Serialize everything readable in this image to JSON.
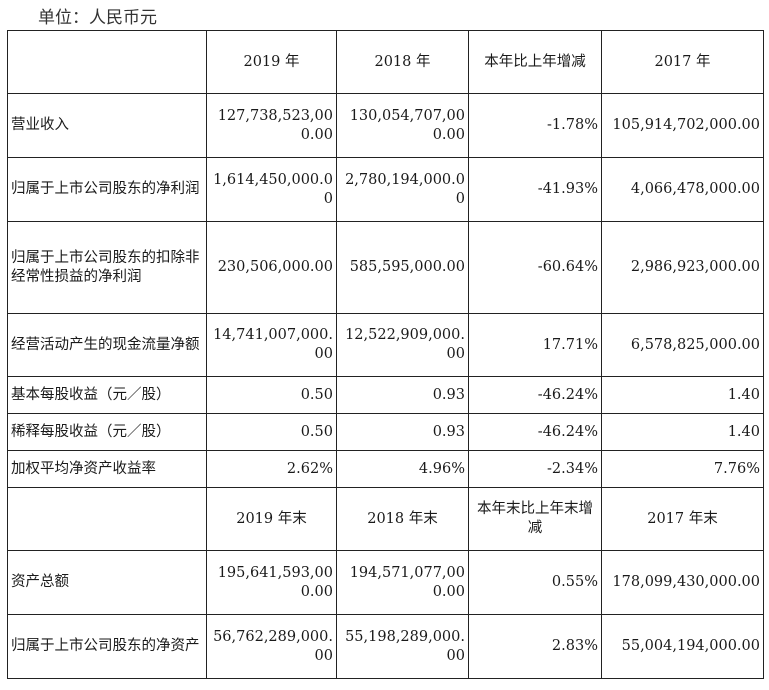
{
  "unit_label": "单位：人民币元",
  "header1": {
    "col1": "2019 年",
    "col2": "2018 年",
    "col3": "本年比上年增减",
    "col4": "2017 年"
  },
  "header2": {
    "col1": "2019 年末",
    "col2": "2018 年末",
    "col3": "本年末比上年末增减",
    "col4": "2017 年末"
  },
  "rows": [
    {
      "label": "营业收入",
      "v2019": "127,738,523,000.00",
      "v2018": "130,054,707,000.00",
      "change": "-1.78%",
      "v2017": "105,914,702,000.00"
    },
    {
      "label": "归属于上市公司股东的净利润",
      "v2019": "1,614,450,000.00",
      "v2018": "2,780,194,000.00",
      "change": "-41.93%",
      "v2017": "4,066,478,000.00"
    },
    {
      "label": "归属于上市公司股东的扣除非经常性损益的净利润",
      "v2019": "230,506,000.00",
      "v2018": "585,595,000.00",
      "change": "-60.64%",
      "v2017": "2,986,923,000.00"
    },
    {
      "label": "经营活动产生的现金流量净额",
      "v2019": "14,741,007,000.00",
      "v2018": "12,522,909,000.00",
      "change": "17.71%",
      "v2017": "6,578,825,000.00"
    },
    {
      "label": "基本每股收益（元／股）",
      "v2019": "0.50",
      "v2018": "0.93",
      "change": "-46.24%",
      "v2017": "1.40"
    },
    {
      "label": "稀释每股收益（元／股）",
      "v2019": "0.50",
      "v2018": "0.93",
      "change": "-46.24%",
      "v2017": "1.40"
    },
    {
      "label": "加权平均净资产收益率",
      "v2019": "2.62%",
      "v2018": "4.96%",
      "change": "-2.34%",
      "v2017": "7.76%"
    }
  ],
  "rows2": [
    {
      "label": "资产总额",
      "v2019": "195,641,593,000.00",
      "v2018": "194,571,077,000.00",
      "change": "0.55%",
      "v2017": "178,099,430,000.00"
    },
    {
      "label": "归属于上市公司股东的净资产",
      "v2019": "56,762,289,000.00",
      "v2018": "55,198,289,000.00",
      "change": "2.83%",
      "v2017": "55,004,194,000.00"
    }
  ]
}
